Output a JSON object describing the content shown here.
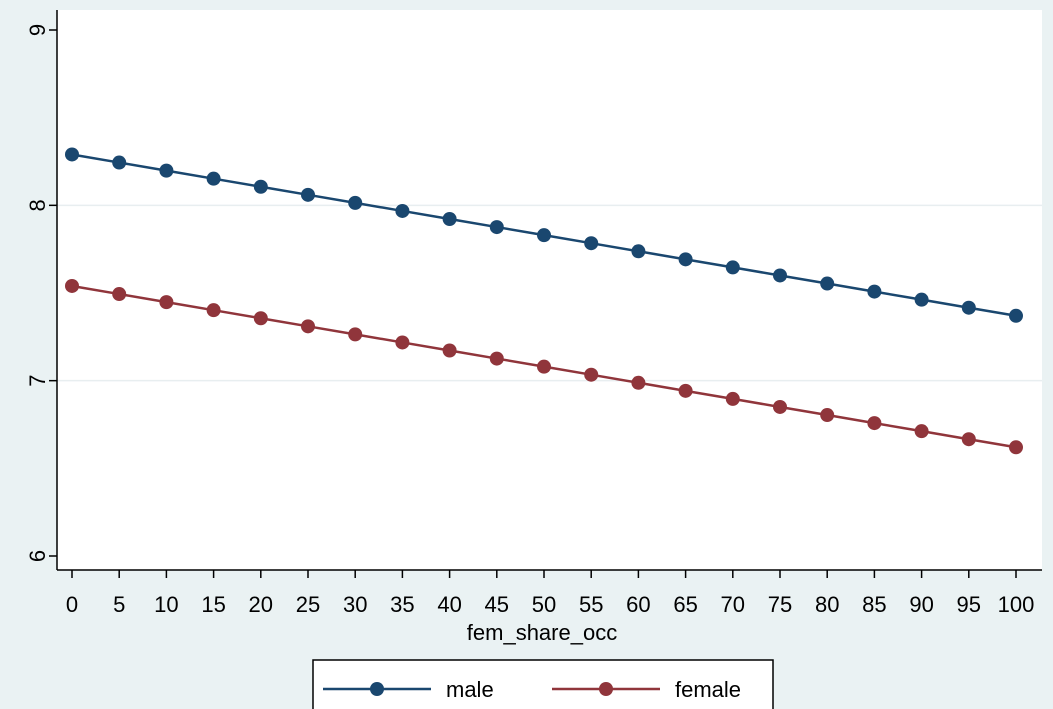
{
  "chart_data": {
    "type": "line",
    "title": "",
    "xlabel": "fem_share_occ",
    "ylabel": "",
    "xlim": [
      0,
      100
    ],
    "ylim": [
      6,
      9
    ],
    "x_ticks": [
      0,
      5,
      10,
      15,
      20,
      25,
      30,
      35,
      40,
      45,
      50,
      55,
      60,
      65,
      70,
      75,
      80,
      85,
      90,
      95,
      100
    ],
    "y_ticks": [
      6,
      7,
      8,
      9
    ],
    "grid": "horizontal",
    "legend_position": "bottom",
    "x": [
      0,
      5,
      10,
      15,
      20,
      25,
      30,
      35,
      40,
      45,
      50,
      55,
      60,
      65,
      70,
      75,
      80,
      85,
      90,
      95,
      100
    ],
    "series": [
      {
        "name": "male",
        "color": "#1a476f",
        "values": [
          8.29,
          8.244,
          8.198,
          8.152,
          8.106,
          8.06,
          8.014,
          7.968,
          7.922,
          7.876,
          7.83,
          7.784,
          7.738,
          7.692,
          7.646,
          7.6,
          7.554,
          7.508,
          7.462,
          7.416,
          7.37
        ]
      },
      {
        "name": "female",
        "color": "#90353b",
        "values": [
          7.54,
          7.494,
          7.448,
          7.402,
          7.356,
          7.31,
          7.264,
          7.218,
          7.172,
          7.126,
          7.08,
          7.034,
          6.988,
          6.942,
          6.896,
          6.85,
          6.804,
          6.758,
          6.712,
          6.666,
          6.62
        ]
      }
    ]
  }
}
